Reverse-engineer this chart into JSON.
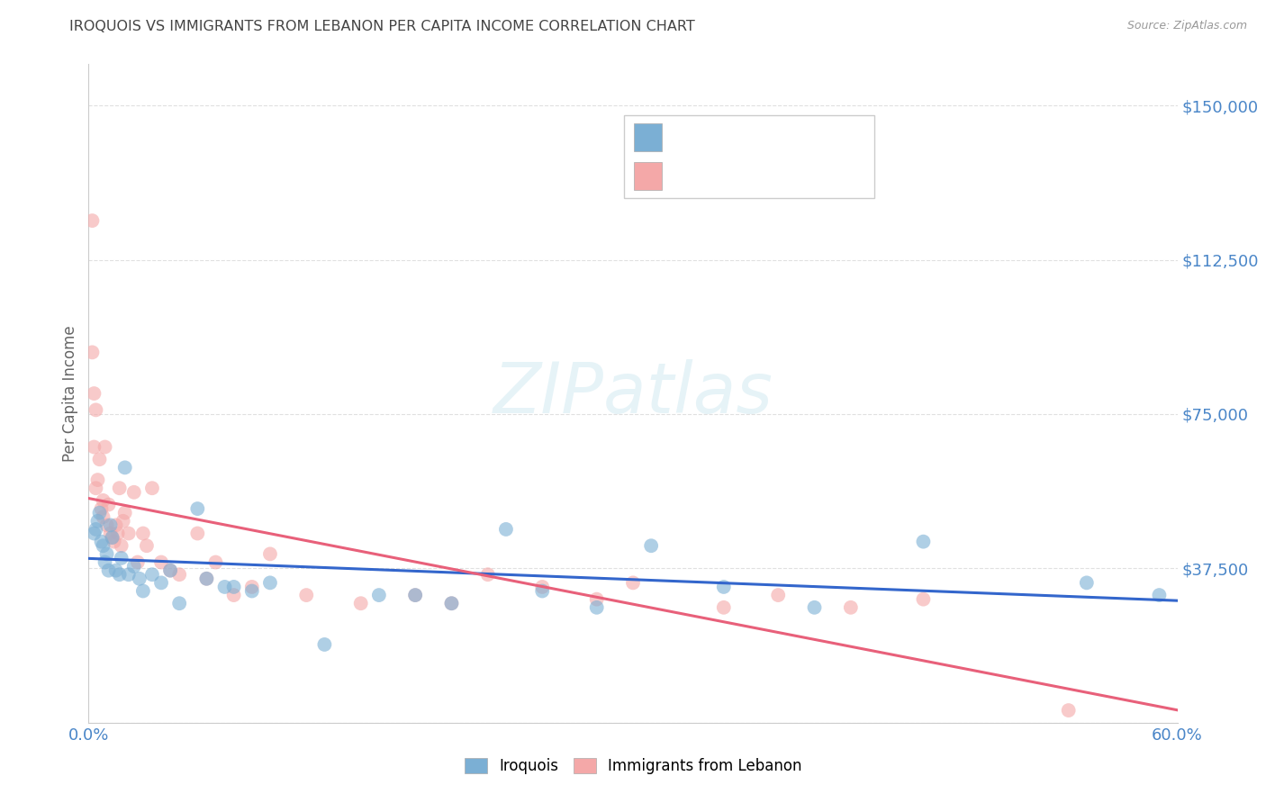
{
  "title": "IROQUOIS VS IMMIGRANTS FROM LEBANON PER CAPITA INCOME CORRELATION CHART",
  "source": "Source: ZipAtlas.com",
  "ylabel": "Per Capita Income",
  "xlim": [
    0.0,
    0.6
  ],
  "ylim": [
    0,
    160000
  ],
  "yticks": [
    0,
    37500,
    75000,
    112500,
    150000
  ],
  "ytick_labels": [
    "",
    "$37,500",
    "$75,000",
    "$112,500",
    "$150,000"
  ],
  "xticks": [
    0.0,
    0.1,
    0.2,
    0.3,
    0.4,
    0.5,
    0.6
  ],
  "xtick_labels": [
    "0.0%",
    "",
    "",
    "",
    "",
    "",
    "60.0%"
  ],
  "background_color": "#ffffff",
  "blue_color": "#7bafd4",
  "pink_color": "#f4a8a8",
  "blue_line_color": "#3366cc",
  "pink_line_color": "#e8607a",
  "scatter_alpha": 0.6,
  "marker_size": 130,
  "iroquois_x": [
    0.003,
    0.004,
    0.005,
    0.006,
    0.007,
    0.008,
    0.009,
    0.01,
    0.011,
    0.012,
    0.013,
    0.015,
    0.017,
    0.018,
    0.02,
    0.022,
    0.025,
    0.028,
    0.03,
    0.035,
    0.04,
    0.045,
    0.05,
    0.06,
    0.065,
    0.075,
    0.08,
    0.09,
    0.1,
    0.13,
    0.16,
    0.18,
    0.2,
    0.23,
    0.25,
    0.28,
    0.31,
    0.35,
    0.4,
    0.46,
    0.55,
    0.59
  ],
  "iroquois_y": [
    46000,
    47000,
    49000,
    51000,
    44000,
    43000,
    39000,
    41000,
    37000,
    48000,
    45000,
    37000,
    36000,
    40000,
    62000,
    36000,
    38000,
    35000,
    32000,
    36000,
    34000,
    37000,
    29000,
    52000,
    35000,
    33000,
    33000,
    32000,
    34000,
    19000,
    31000,
    31000,
    29000,
    47000,
    32000,
    28000,
    43000,
    33000,
    28000,
    44000,
    34000,
    31000
  ],
  "lebanon_x": [
    0.002,
    0.002,
    0.003,
    0.003,
    0.004,
    0.004,
    0.005,
    0.006,
    0.007,
    0.008,
    0.008,
    0.009,
    0.01,
    0.011,
    0.012,
    0.013,
    0.014,
    0.015,
    0.016,
    0.017,
    0.018,
    0.019,
    0.02,
    0.022,
    0.025,
    0.027,
    0.03,
    0.032,
    0.035,
    0.04,
    0.045,
    0.05,
    0.06,
    0.065,
    0.07,
    0.08,
    0.09,
    0.1,
    0.12,
    0.15,
    0.18,
    0.2,
    0.22,
    0.25,
    0.28,
    0.3,
    0.35,
    0.38,
    0.42,
    0.46,
    0.54
  ],
  "lebanon_y": [
    122000,
    90000,
    80000,
    67000,
    57000,
    76000,
    59000,
    64000,
    52000,
    50000,
    54000,
    67000,
    48000,
    53000,
    46000,
    45000,
    44000,
    48000,
    46000,
    57000,
    43000,
    49000,
    51000,
    46000,
    56000,
    39000,
    46000,
    43000,
    57000,
    39000,
    37000,
    36000,
    46000,
    35000,
    39000,
    31000,
    33000,
    41000,
    31000,
    29000,
    31000,
    29000,
    36000,
    33000,
    30000,
    34000,
    28000,
    31000,
    28000,
    30000,
    3000
  ],
  "grid_color": "#e0e0e0",
  "title_color": "#444444",
  "tick_label_color": "#4a86c8"
}
